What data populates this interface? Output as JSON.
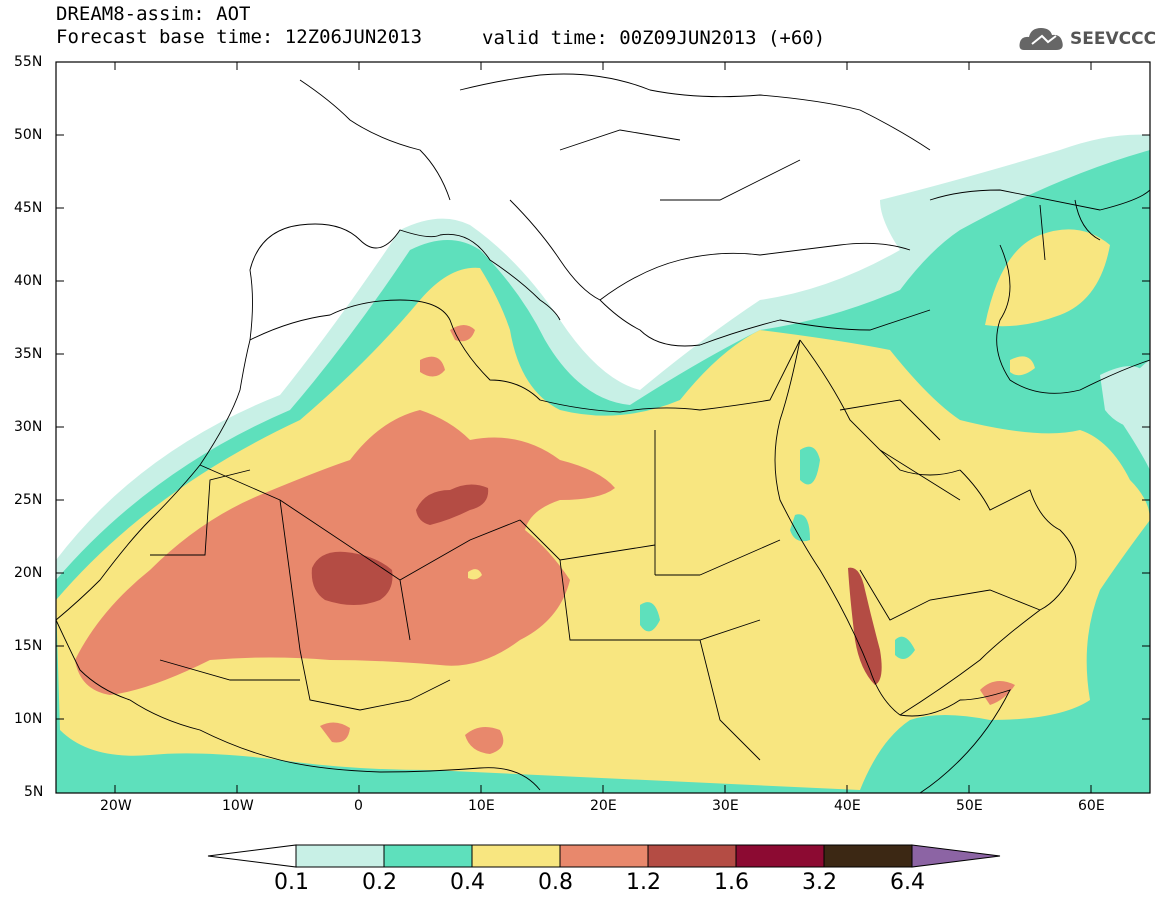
{
  "header": {
    "title": "DREAM8-assim: AOT",
    "base_time": "Forecast base time: 12Z06JUN2013",
    "valid_time": "valid time: 00Z09JUN2013 (+60)"
  },
  "logo": {
    "text": "SEEVCCC",
    "icon": "cloud-icon"
  },
  "axes": {
    "lat_labels": [
      "55N",
      "50N",
      "45N",
      "40N",
      "35N",
      "30N",
      "25N",
      "20N",
      "15N",
      "10N",
      "5N"
    ],
    "lon_labels": [
      "20W",
      "10W",
      "0",
      "10E",
      "20E",
      "30E",
      "40E",
      "50E",
      "60E"
    ]
  },
  "colorbar": {
    "labels": [
      "0.1",
      "0.2",
      "0.4",
      "0.8",
      "1.2",
      "1.6",
      "3.2",
      "6.4"
    ],
    "colors": [
      "#ffffff",
      "#c8f0e6",
      "#5ee0bc",
      "#f8e680",
      "#e8886c",
      "#b44c44",
      "#8c0a32",
      "#3c2814",
      "#8c64a4"
    ]
  },
  "colors": {
    "c01": "#c8f0e6",
    "c02": "#5ee0bc",
    "c04": "#f8e680",
    "c08": "#e8886c",
    "c12": "#b44c44"
  }
}
